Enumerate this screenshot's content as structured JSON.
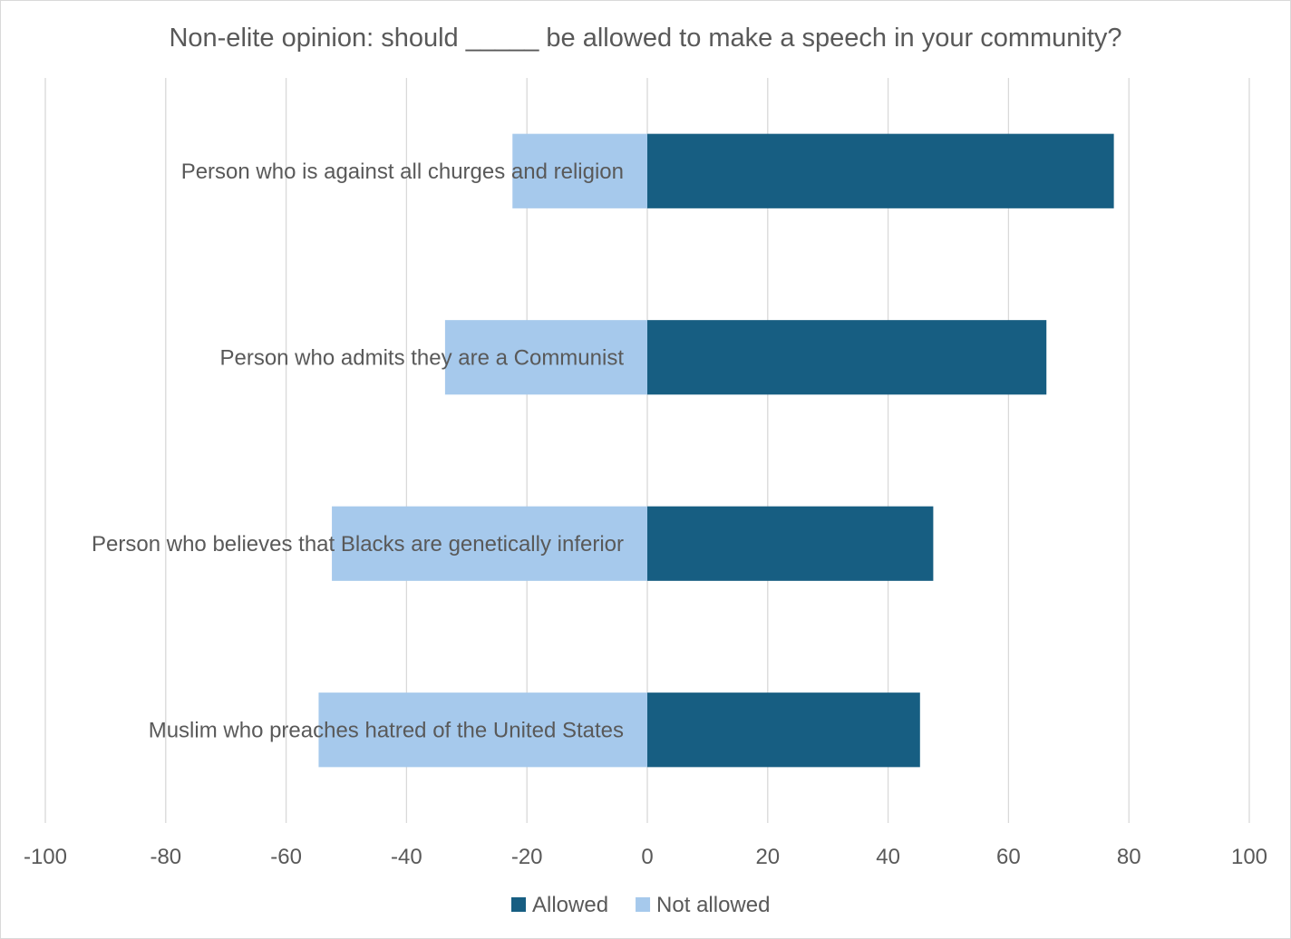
{
  "chart_data": {
    "type": "bar",
    "orientation": "horizontal",
    "stacked": true,
    "title": "Non-elite opinion: should _____ be allowed to make a speech in your community?",
    "xlabel": "",
    "ylabel": "",
    "xlim": [
      -100,
      100
    ],
    "x_ticks": [
      "-100",
      "-80",
      "-60",
      "-40",
      "-20",
      "0",
      "20",
      "40",
      "60",
      "80",
      "100"
    ],
    "x_tick_values": [
      -100,
      -80,
      -60,
      -40,
      -20,
      0,
      20,
      40,
      60,
      80,
      100
    ],
    "grid": "vertical",
    "legend_position": "bottom",
    "categories": [
      "Person who is against all churges and religion",
      "Person who admits they are a Communist",
      "Person who believes that Blacks are genetically inferior",
      "Muslim who preaches hatred of the United States"
    ],
    "series": [
      {
        "name": "Allowed",
        "color": "#175e82",
        "values": [
          77.5,
          66.3,
          47.5,
          45.3
        ]
      },
      {
        "name": "Not allowed",
        "color": "#a6c9ec",
        "values": [
          -22.4,
          -33.6,
          -52.4,
          -54.6
        ]
      }
    ]
  }
}
